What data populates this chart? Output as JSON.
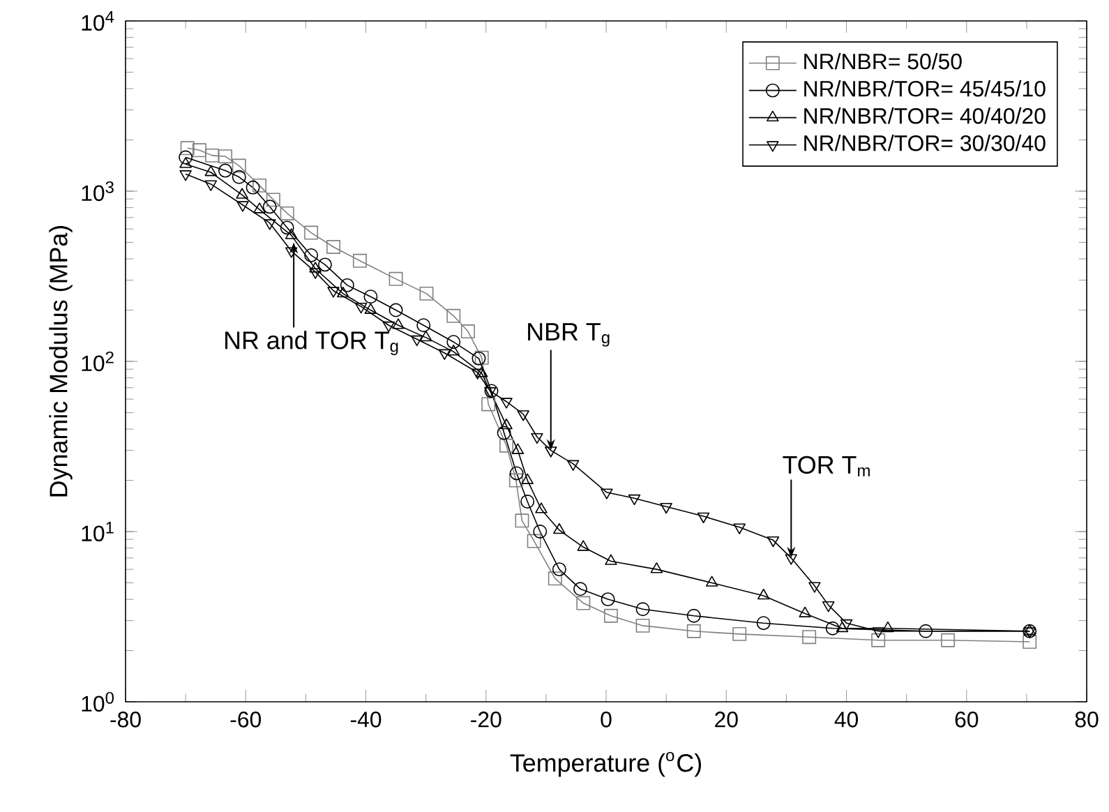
{
  "chart_data": {
    "type": "line",
    "xlabel": "Temperature ($^{o}$C)",
    "ylabel": "Dynamic Modulus (MPa)",
    "log": "y",
    "xlim": [
      -80,
      80
    ],
    "xticks": [
      -80,
      -60,
      -40,
      -20,
      0,
      20,
      40,
      60,
      80
    ],
    "ylim": [
      1,
      10000
    ],
    "yticks": [
      {
        "value": 1,
        "label": "10$^{0}$"
      },
      {
        "value": 10,
        "label": "10$^{1}$"
      },
      {
        "value": 100,
        "label": "10$^{2}$"
      },
      {
        "value": 1000,
        "label": "10$^{3}$"
      },
      {
        "value": 10000,
        "label": "10$^{4}$"
      }
    ],
    "legend": "top right",
    "grid": false,
    "line_style": "solid",
    "series": [
      {
        "name": "NR/NBR= 50/50",
        "color": "#808080",
        "marker": "square",
        "x": [
          -69.7,
          -67.7,
          -65.6,
          -63.4,
          -61.1,
          -57.7,
          -55.4,
          -53.1,
          -49.1,
          -45.4,
          -41.0,
          -35.0,
          -29.9,
          -25.4,
          -23.0,
          -20.7,
          -19.6,
          -16.6,
          -15.0,
          -14.0,
          -12.0,
          -8.5,
          -3.8,
          0.8,
          6.1,
          14.6,
          22.2,
          33.8,
          45.3,
          56.9,
          70.5
        ],
        "values": [
          1790,
          1740,
          1620,
          1600,
          1410,
          1080,
          890,
          740,
          570,
          470,
          390,
          305,
          250,
          185,
          150,
          105,
          56,
          32,
          20,
          11.6,
          8.8,
          5.3,
          3.8,
          3.2,
          2.8,
          2.6,
          2.5,
          2.4,
          2.3,
          2.3,
          2.25
        ]
      },
      {
        "name": "NR/NBR/TOR= 45/45/10",
        "color": "#000000",
        "marker": "circle",
        "x": [
          -70.0,
          -63.4,
          -61.1,
          -58.8,
          -56.0,
          -53.1,
          -49.1,
          -46.8,
          -43.1,
          -39.2,
          -35.0,
          -30.4,
          -25.4,
          -21.2,
          -19.1,
          -17.0,
          -14.9,
          -13.1,
          -11.0,
          -7.8,
          -4.3,
          0.3,
          6.1,
          14.6,
          26.2,
          37.7,
          53.2,
          70.5
        ],
        "values": [
          1580,
          1320,
          1210,
          1050,
          810,
          610,
          420,
          370,
          280,
          240,
          200,
          163,
          130,
          104,
          67,
          38,
          22,
          15,
          10,
          6,
          4.6,
          4.0,
          3.5,
          3.2,
          2.9,
          2.7,
          2.6,
          2.6
        ]
      },
      {
        "name": "NR/NBR/TOR= 40/40/20",
        "color": "#000000",
        "marker": "triangle",
        "x": [
          -70.0,
          -65.8,
          -60.6,
          -57.7,
          -52.4,
          -48.4,
          -43.8,
          -39.2,
          -34.6,
          -30.0,
          -25.4,
          -20.7,
          -16.6,
          -14.7,
          -13.1,
          -10.8,
          -7.8,
          -3.8,
          0.8,
          8.4,
          17.6,
          26.2,
          33.1,
          39.3,
          46.9,
          70.5
        ],
        "values": [
          1440,
          1290,
          950,
          780,
          550,
          350,
          250,
          200,
          163,
          138,
          114,
          85,
          42,
          30,
          20,
          13.5,
          10.2,
          8.1,
          6.7,
          6.0,
          5.0,
          4.2,
          3.3,
          2.7,
          2.7,
          2.6
        ]
      },
      {
        "name": "NR/NBR/TOR= 30/30/40",
        "color": "#000000",
        "marker": "triangle down",
        "x": [
          -70.0,
          -65.8,
          -60.5,
          -56.0,
          -52.4,
          -48.4,
          -45.4,
          -40.8,
          -36.2,
          -31.5,
          -26.9,
          -21.4,
          -19.3,
          -16.6,
          -13.8,
          -11.5,
          -9.2,
          -5.5,
          0.1,
          4.7,
          10.0,
          16.2,
          22.2,
          27.8,
          30.8,
          34.7,
          37.0,
          40.0,
          45.3,
          70.5
        ],
        "values": [
          1260,
          1100,
          830,
          650,
          445,
          335,
          260,
          210,
          163,
          135,
          112,
          86,
          67,
          58,
          49,
          36,
          30,
          25,
          17,
          15.7,
          14,
          12.3,
          10.6,
          8.9,
          7,
          4.8,
          3.7,
          2.9,
          2.6,
          2.6
        ]
      }
    ],
    "annotations": [
      {
        "text": "NR and TOR T$_{g}$",
        "x": -52,
        "y": 500
      },
      {
        "text": "NBR T$_{g}$",
        "x": -9.2,
        "y": 30
      },
      {
        "text": "TOR T$_{m}$",
        "x": 30.8,
        "y": 7
      }
    ]
  }
}
